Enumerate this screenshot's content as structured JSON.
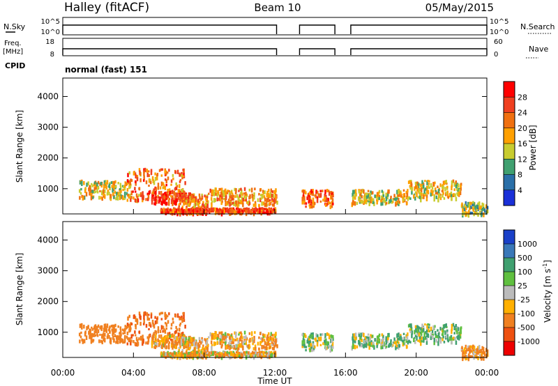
{
  "header": {
    "station": "Halley (fitACF)",
    "beam": "Beam 10",
    "date": "05/May/2015"
  },
  "panels": {
    "nsky": {
      "left_label": "N.Sky",
      "right_label": "N.Search",
      "left_ticks": [
        "10^5",
        "10^0"
      ],
      "right_ticks": [
        "10^5",
        "10^0"
      ]
    },
    "freq": {
      "left_label_1": "Freq.",
      "left_label_2": "[MHz]",
      "right_label": "Nave",
      "left_ticks": [
        "18",
        "8"
      ],
      "right_ticks": [
        "60",
        "0"
      ]
    },
    "cpid": {
      "label": "CPID",
      "mode_text": "normal (fast) 151"
    },
    "power": {
      "ylabel": "Slant Range [km]",
      "yticks": [
        "4000",
        "3000",
        "2000",
        "1000"
      ],
      "colorbar_label": "Power [dB]",
      "colorbar_ticks": [
        "28",
        "24",
        "20",
        "16",
        "12",
        "8",
        "4"
      ],
      "colorbar_colors": [
        "#ff0000",
        "#f04020",
        "#f07010",
        "#ffa000",
        "#c8cc30",
        "#40a070",
        "#2a6fa8",
        "#1a30d8"
      ]
    },
    "velocity": {
      "ylabel": "Slant Range [km]",
      "yticks": [
        "4000",
        "3000",
        "2000",
        "1000"
      ],
      "colorbar_label": "Velocity [m s",
      "colorbar_label_sup": "-1",
      "colorbar_label_end": "]",
      "colorbar_ticks": [
        "1000",
        "500",
        "100",
        "25",
        "-25",
        "-100",
        "-500",
        "-1000"
      ],
      "colorbar_colors": [
        "#1a40c8",
        "#3a78b8",
        "#40a070",
        "#60c040",
        "#bbbbbb",
        "#ffb000",
        "#f08020",
        "#ee5010",
        "#ee0000"
      ]
    },
    "xaxis": {
      "label": "Time UT",
      "ticks": [
        "00:00",
        "04:00",
        "08:00",
        "12:00",
        "16:00",
        "20:00",
        "00:00"
      ]
    }
  },
  "chart_data": {
    "type": "heatmap",
    "x_range_hours": [
      0,
      24
    ],
    "y_range_km": [
      180,
      4600
    ],
    "operating_intervals_ut": [
      [
        0.0,
        12.1
      ],
      [
        13.4,
        15.4
      ],
      [
        16.3,
        24.0
      ]
    ],
    "scatter_blobs": [
      {
        "t0": 0.9,
        "t1": 3.8,
        "r0": 700,
        "r1": 1300,
        "power": 16,
        "vel": -300
      },
      {
        "t0": 3.6,
        "t1": 6.9,
        "r0": 650,
        "r1": 1700,
        "power": 22,
        "vel": -450
      },
      {
        "t0": 5.0,
        "t1": 7.2,
        "r0": 550,
        "r1": 950,
        "power": 27,
        "vel": -100
      },
      {
        "t0": 6.5,
        "t1": 8.2,
        "r0": 400,
        "r1": 850,
        "power": 20,
        "vel": -100
      },
      {
        "t0": 8.2,
        "t1": 12.1,
        "r0": 500,
        "r1": 1050,
        "power": 20,
        "vel": -100
      },
      {
        "t0": 5.5,
        "t1": 12.0,
        "r0": 250,
        "r1": 400,
        "power": 26,
        "vel": -60
      },
      {
        "t0": 13.5,
        "t1": 15.3,
        "r0": 450,
        "r1": 1000,
        "power": 24,
        "vel": 50
      },
      {
        "t0": 16.3,
        "t1": 19.5,
        "r0": 550,
        "r1": 1000,
        "power": 16,
        "vel": 60
      },
      {
        "t0": 19.5,
        "t1": 22.5,
        "r0": 700,
        "r1": 1300,
        "power": 16,
        "vel": 80
      },
      {
        "t0": 22.5,
        "t1": 24.0,
        "r0": 200,
        "r1": 600,
        "power": 12,
        "vel": -150
      }
    ]
  }
}
